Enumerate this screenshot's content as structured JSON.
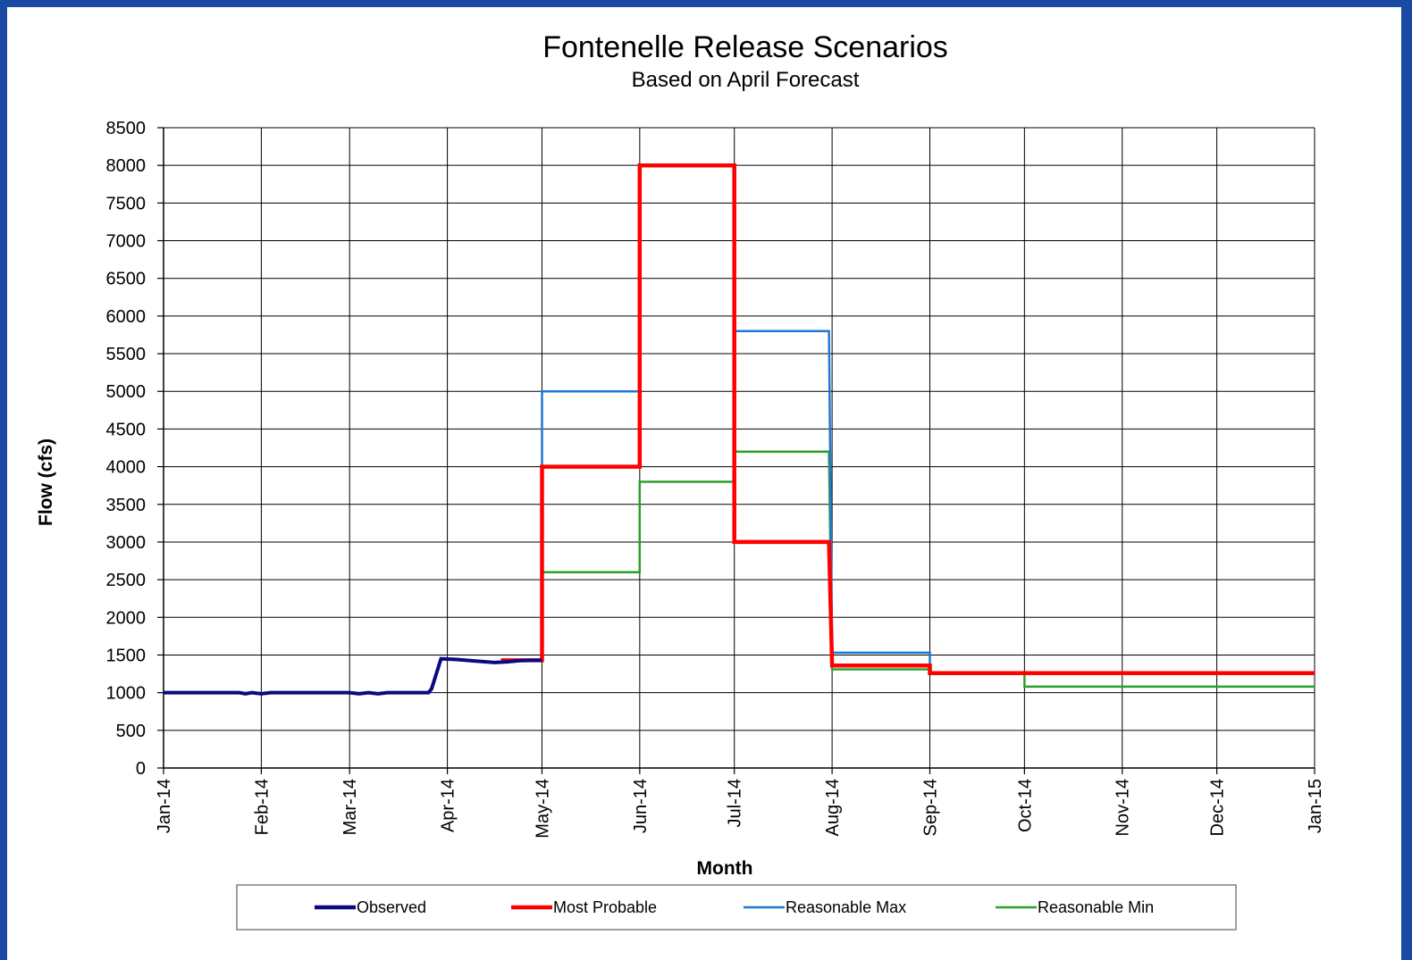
{
  "chart_data": {
    "type": "line",
    "title": "Fontenelle Release Scenarios",
    "subtitle": "Based on April Forecast",
    "xlabel": "Month",
    "ylabel": "Flow (cfs)",
    "ylim": [
      0,
      8500
    ],
    "yticks": [
      0,
      500,
      1000,
      1500,
      2000,
      2500,
      3000,
      3500,
      4000,
      4500,
      5000,
      5500,
      6000,
      6500,
      7000,
      7500,
      8000,
      8500
    ],
    "xlim": [
      "2014-01-01",
      "2015-01-01"
    ],
    "xticks": [
      {
        "date": "2014-01-01",
        "label": "Jan-14"
      },
      {
        "date": "2014-02-01",
        "label": "Feb-14"
      },
      {
        "date": "2014-03-01",
        "label": "Mar-14"
      },
      {
        "date": "2014-04-01",
        "label": "Apr-14"
      },
      {
        "date": "2014-05-01",
        "label": "May-14"
      },
      {
        "date": "2014-06-01",
        "label": "Jun-14"
      },
      {
        "date": "2014-07-01",
        "label": "Jul-14"
      },
      {
        "date": "2014-08-01",
        "label": "Aug-14"
      },
      {
        "date": "2014-09-01",
        "label": "Sep-14"
      },
      {
        "date": "2014-10-01",
        "label": "Oct-14"
      },
      {
        "date": "2014-11-01",
        "label": "Nov-14"
      },
      {
        "date": "2014-12-01",
        "label": "Dec-14"
      },
      {
        "date": "2015-01-01",
        "label": "Jan-15"
      }
    ],
    "grid": true,
    "legend_position": "bottom",
    "series": [
      {
        "name": "Observed",
        "color": "#0a0a80",
        "width": 4,
        "points": [
          [
            "2014-01-01",
            1000
          ],
          [
            "2014-01-25",
            1000
          ],
          [
            "2014-01-27",
            985
          ],
          [
            "2014-01-29",
            1000
          ],
          [
            "2014-02-01",
            985
          ],
          [
            "2014-02-04",
            1000
          ],
          [
            "2014-03-01",
            1000
          ],
          [
            "2014-03-04",
            985
          ],
          [
            "2014-03-07",
            1000
          ],
          [
            "2014-03-10",
            985
          ],
          [
            "2014-03-13",
            1000
          ],
          [
            "2014-03-26",
            1000
          ],
          [
            "2014-03-27",
            1050
          ],
          [
            "2014-03-30",
            1450
          ],
          [
            "2014-04-04",
            1440
          ],
          [
            "2014-04-10",
            1420
          ],
          [
            "2014-04-16",
            1400
          ],
          [
            "2014-04-20",
            1410
          ],
          [
            "2014-04-24",
            1425
          ],
          [
            "2014-04-28",
            1430
          ],
          [
            "2014-05-01",
            1430
          ]
        ]
      },
      {
        "name": "Most Probable",
        "color": "#ff0000",
        "width": 4.5,
        "points": [
          [
            "2014-04-18",
            1430
          ],
          [
            "2014-05-01",
            1430
          ],
          [
            "2014-05-01",
            4000
          ],
          [
            "2014-06-01",
            4000
          ],
          [
            "2014-06-01",
            8000
          ],
          [
            "2014-07-01",
            8000
          ],
          [
            "2014-07-01",
            3000
          ],
          [
            "2014-07-31",
            3000
          ],
          [
            "2014-08-01",
            1360
          ],
          [
            "2014-09-01",
            1360
          ],
          [
            "2014-09-01",
            1260
          ],
          [
            "2014-10-01",
            1260
          ],
          [
            "2015-01-01",
            1260
          ]
        ]
      },
      {
        "name": "Reasonable Max",
        "color": "#1f77d4",
        "width": 2.5,
        "points": [
          [
            "2014-04-18",
            1430
          ],
          [
            "2014-05-01",
            1430
          ],
          [
            "2014-05-01",
            5000
          ],
          [
            "2014-06-01",
            5000
          ],
          [
            "2014-06-01",
            8000
          ],
          [
            "2014-07-01",
            8000
          ],
          [
            "2014-07-01",
            5800
          ],
          [
            "2014-07-31",
            5800
          ],
          [
            "2014-08-01",
            1530
          ],
          [
            "2014-09-01",
            1530
          ],
          [
            "2014-09-01",
            1260
          ],
          [
            "2014-10-01",
            1260
          ],
          [
            "2015-01-01",
            1260
          ]
        ]
      },
      {
        "name": "Reasonable Min",
        "color": "#2ca02c",
        "width": 2.5,
        "points": [
          [
            "2014-04-18",
            1430
          ],
          [
            "2014-05-01",
            1430
          ],
          [
            "2014-05-01",
            2600
          ],
          [
            "2014-06-01",
            2600
          ],
          [
            "2014-06-01",
            3800
          ],
          [
            "2014-07-01",
            3800
          ],
          [
            "2014-07-01",
            4200
          ],
          [
            "2014-07-31",
            4200
          ],
          [
            "2014-08-01",
            1310
          ],
          [
            "2014-09-01",
            1310
          ],
          [
            "2014-09-01",
            1250
          ],
          [
            "2014-10-01",
            1250
          ],
          [
            "2014-10-01",
            1080
          ],
          [
            "2015-01-01",
            1080
          ]
        ]
      }
    ]
  }
}
